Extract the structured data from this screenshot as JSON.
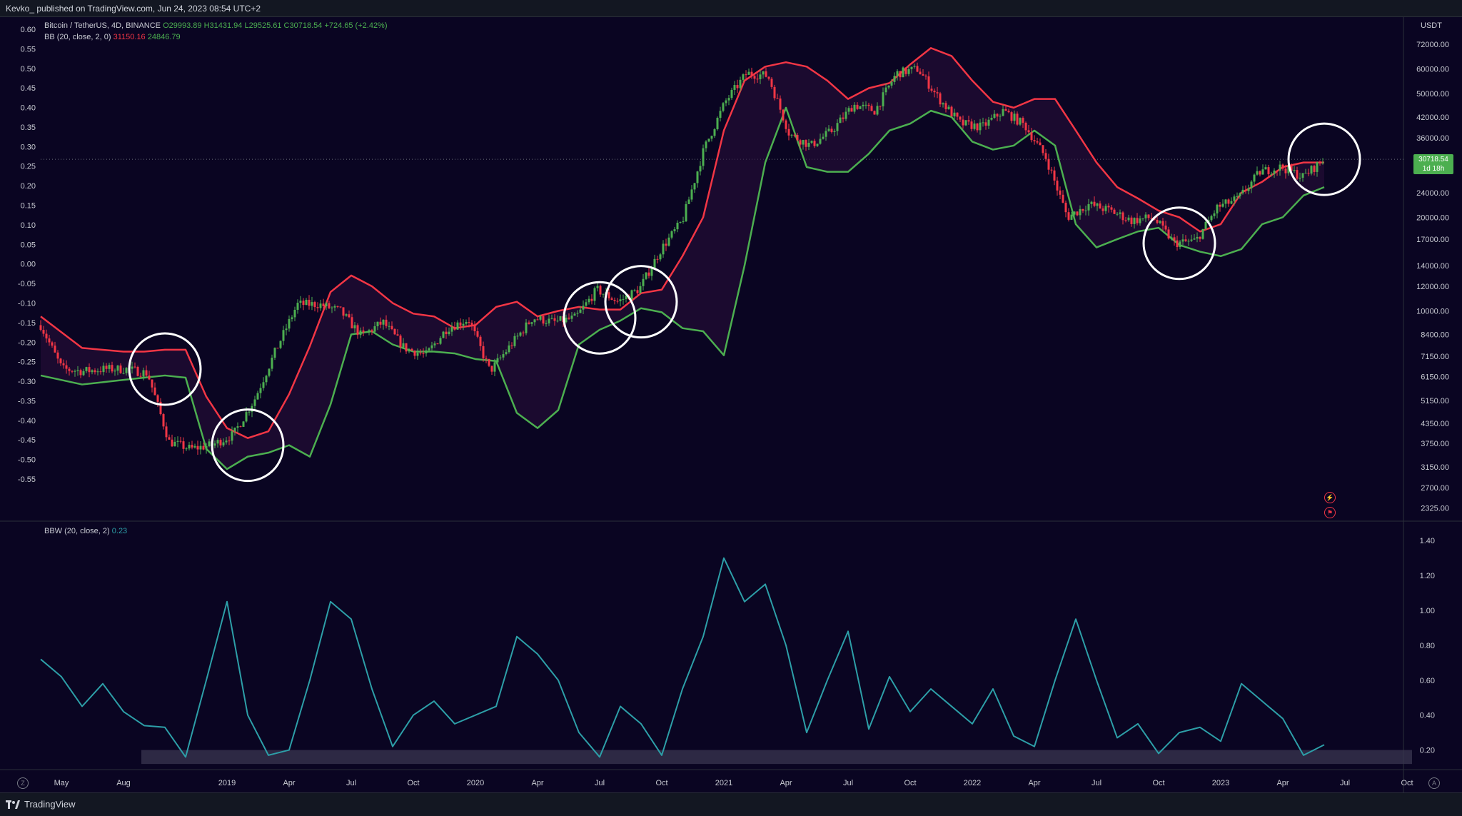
{
  "header": {
    "publisher": "Kevko_ published on TradingView.com, Jun 24, 2023 08:54 UTC+2"
  },
  "main_legend": {
    "symbol": "Bitcoin / TetherUS, 4D, BINANCE",
    "open": "O29993.89",
    "high": "H31431.94",
    "low": "L29525.61",
    "close": "C30718.54",
    "change": "+724.65 (+2.42%)"
  },
  "bb_legend": {
    "label": "BB (20, close, 2, 0)",
    "upper": "31150.16",
    "lower": "24846.79"
  },
  "bbw_legend": {
    "label": "BBW (20, close, 2)",
    "value": "0.23"
  },
  "price_tag": {
    "price": "30718.54",
    "countdown": "1d 18h"
  },
  "price_unit": "USDT",
  "brand": "TradingView",
  "colors": {
    "background": "#0a0522",
    "upper_band": "#f23645",
    "lower_band": "#4caf50",
    "bbw": "#2d9fa8",
    "up_candle": "#4caf50",
    "down_candle": "#f23645"
  },
  "chart_data": [
    {
      "type": "line",
      "x": [
        "2018-04",
        "2018-06",
        "2018-08",
        "2018-09",
        "2018-10",
        "2018-11",
        "2018-12",
        "2019-01",
        "2019-02",
        "2019-03",
        "2019-04",
        "2019-05",
        "2019-06",
        "2019-07",
        "2019-08",
        "2019-09",
        "2019-10",
        "2019-11",
        "2019-12",
        "2020-01",
        "2020-02",
        "2020-03",
        "2020-04",
        "2020-05",
        "2020-06",
        "2020-07",
        "2020-08",
        "2020-09",
        "2020-10",
        "2020-11",
        "2020-12",
        "2021-01",
        "2021-02",
        "2021-03",
        "2021-04",
        "2021-05",
        "2021-06",
        "2021-07",
        "2021-08",
        "2021-09",
        "2021-10",
        "2021-11",
        "2021-12",
        "2022-01",
        "2022-02",
        "2022-03",
        "2022-04",
        "2022-05",
        "2022-06",
        "2022-07",
        "2022-08",
        "2022-09",
        "2022-10",
        "2022-11",
        "2022-12",
        "2023-01",
        "2023-02",
        "2023-03",
        "2023-04",
        "2023-05",
        "2023-06"
      ],
      "series": [
        {
          "name": "Upper",
          "values": [
            9600,
            7600,
            7400,
            7400,
            7500,
            7500,
            5300,
            4200,
            3900,
            4100,
            5400,
            7700,
            11500,
            13000,
            12000,
            10600,
            9800,
            9600,
            8800,
            9000,
            10300,
            10700,
            9600,
            10000,
            10300,
            10100,
            10100,
            11400,
            11700,
            15000,
            20000,
            38000,
            55000,
            61000,
            63000,
            61000,
            55000,
            48000,
            52000,
            54000,
            62000,
            70000,
            66000,
            55000,
            47000,
            45000,
            48000,
            48000,
            38000,
            30000,
            25000,
            23000,
            21000,
            20000,
            18000,
            19000,
            24000,
            26000,
            29000,
            30000,
            30000
          ]
        },
        {
          "name": "Lower",
          "values": [
            6200,
            5800,
            6000,
            6100,
            6200,
            6100,
            3600,
            3100,
            3400,
            3500,
            3700,
            3400,
            5000,
            8400,
            8600,
            7800,
            7400,
            7400,
            7300,
            7000,
            6900,
            4700,
            4200,
            4800,
            7800,
            8700,
            9300,
            10200,
            9900,
            8800,
            8600,
            7200,
            14000,
            30000,
            45000,
            29000,
            28000,
            28000,
            32000,
            38000,
            40000,
            44000,
            42000,
            35000,
            33000,
            34000,
            38000,
            34000,
            19000,
            16000,
            17000,
            18000,
            18500,
            16300,
            15500,
            15000,
            15800,
            19000,
            20000,
            23500,
            25000
          ]
        },
        {
          "name": "BTC",
          "values": [
            9000,
            6500,
            6400,
            6500,
            6500,
            6300,
            3800,
            3600,
            3700,
            4000,
            5200,
            7500,
            10500,
            10500,
            10000,
            8300,
            9200,
            7600,
            7200,
            8800,
            9400,
            6400,
            7800,
            9500,
            9200,
            9500,
            11700,
            10700,
            11800,
            15800,
            19500,
            33000,
            47000,
            58000,
            57000,
            37000,
            34000,
            38000,
            46000,
            44000,
            58000,
            60000,
            48000,
            40000,
            39000,
            44000,
            39500,
            31000,
            20000,
            22000,
            21000,
            19500,
            20000,
            16500,
            16800,
            21500,
            23000,
            28000,
            29000,
            27000,
            30718.54
          ]
        }
      ],
      "ylim": [
        2200,
        80000
      ],
      "yscale": "log",
      "price_ticks": [
        "72000.00",
        "60000.00",
        "50000.00",
        "42000.00",
        "36000.00",
        "30000.00",
        "24000.00",
        "20000.00",
        "17000.00",
        "14000.00",
        "12000.00",
        "10000.00",
        "8400.00",
        "7150.00",
        "6150.00",
        "5150.00",
        "4350.00",
        "3750.00",
        "3150.00",
        "2700.00",
        "2325.00"
      ],
      "price_tick_values": [
        72000,
        60000,
        50000,
        42000,
        36000,
        30000,
        24000,
        20000,
        17000,
        14000,
        12000,
        10000,
        8400,
        7150,
        6150,
        5150,
        4350,
        3750,
        3150,
        2700,
        2325
      ],
      "left_ticks": [
        "0.60",
        "0.55",
        "0.50",
        "0.45",
        "0.40",
        "0.35",
        "0.30",
        "0.25",
        "0.20",
        "0.15",
        "0.10",
        "0.05",
        "0.00",
        "-0.05",
        "-0.10",
        "-0.15",
        "-0.20",
        "-0.25",
        "-0.30",
        "-0.35",
        "-0.40",
        "-0.45",
        "-0.50",
        "-0.55"
      ],
      "squeeze_circles": [
        "2018-10",
        "2019-02",
        "2020-07",
        "2020-09",
        "2022-11",
        "2023-06"
      ]
    },
    {
      "type": "line",
      "x": [
        "2018-04",
        "2018-05",
        "2018-06",
        "2018-07",
        "2018-08",
        "2018-09",
        "2018-10",
        "2018-11",
        "2018-12",
        "2019-01",
        "2019-02",
        "2019-03",
        "2019-04",
        "2019-05",
        "2019-06",
        "2019-07",
        "2019-08",
        "2019-09",
        "2019-10",
        "2019-11",
        "2019-12",
        "2020-01",
        "2020-02",
        "2020-03",
        "2020-04",
        "2020-05",
        "2020-06",
        "2020-07",
        "2020-08",
        "2020-09",
        "2020-10",
        "2020-11",
        "2020-12",
        "2021-01",
        "2021-02",
        "2021-03",
        "2021-04",
        "2021-05",
        "2021-06",
        "2021-07",
        "2021-08",
        "2021-09",
        "2021-10",
        "2021-11",
        "2021-12",
        "2022-01",
        "2022-02",
        "2022-03",
        "2022-04",
        "2022-05",
        "2022-06",
        "2022-07",
        "2022-08",
        "2022-09",
        "2022-10",
        "2022-11",
        "2022-12",
        "2023-01",
        "2023-02",
        "2023-03",
        "2023-04",
        "2023-05",
        "2023-06"
      ],
      "series": [
        {
          "name": "BBW",
          "values": [
            0.72,
            0.62,
            0.45,
            0.58,
            0.42,
            0.34,
            0.33,
            0.16,
            0.6,
            1.05,
            0.4,
            0.17,
            0.2,
            0.6,
            1.05,
            0.95,
            0.55,
            0.22,
            0.4,
            0.48,
            0.35,
            0.4,
            0.45,
            0.85,
            0.75,
            0.6,
            0.3,
            0.16,
            0.45,
            0.35,
            0.17,
            0.55,
            0.85,
            1.3,
            1.05,
            1.15,
            0.8,
            0.3,
            0.6,
            0.88,
            0.32,
            0.62,
            0.42,
            0.55,
            0.45,
            0.35,
            0.55,
            0.28,
            0.22,
            0.6,
            0.95,
            0.6,
            0.27,
            0.35,
            0.18,
            0.3,
            0.33,
            0.25,
            0.58,
            0.48,
            0.38,
            0.17,
            0.23
          ]
        }
      ],
      "ylim": [
        0.1,
        1.45
      ],
      "y_ticks": [
        "1.40",
        "1.20",
        "1.00",
        "0.80",
        "0.60",
        "0.40",
        "0.20"
      ],
      "y_tick_values": [
        1.4,
        1.2,
        1.0,
        0.8,
        0.6,
        0.4,
        0.2
      ],
      "x_ticks": [
        "May",
        "Aug",
        "2019",
        "Apr",
        "Jul",
        "Oct",
        "2020",
        "Apr",
        "Jul",
        "Oct",
        "2021",
        "Apr",
        "Jul",
        "Oct",
        "2022",
        "Apr",
        "Jul",
        "Oct",
        "2023",
        "Apr",
        "Jul",
        "Oct"
      ],
      "x_tick_dates": [
        "2018-05",
        "2018-08",
        "2019-01",
        "2019-04",
        "2019-07",
        "2019-10",
        "2020-01",
        "2020-04",
        "2020-07",
        "2020-10",
        "2021-01",
        "2021-04",
        "2021-07",
        "2021-10",
        "2022-01",
        "2022-04",
        "2022-07",
        "2022-10",
        "2023-01",
        "2023-04",
        "2023-07",
        "2023-10"
      ],
      "squeeze_zone": [
        0.12,
        0.2
      ]
    }
  ]
}
